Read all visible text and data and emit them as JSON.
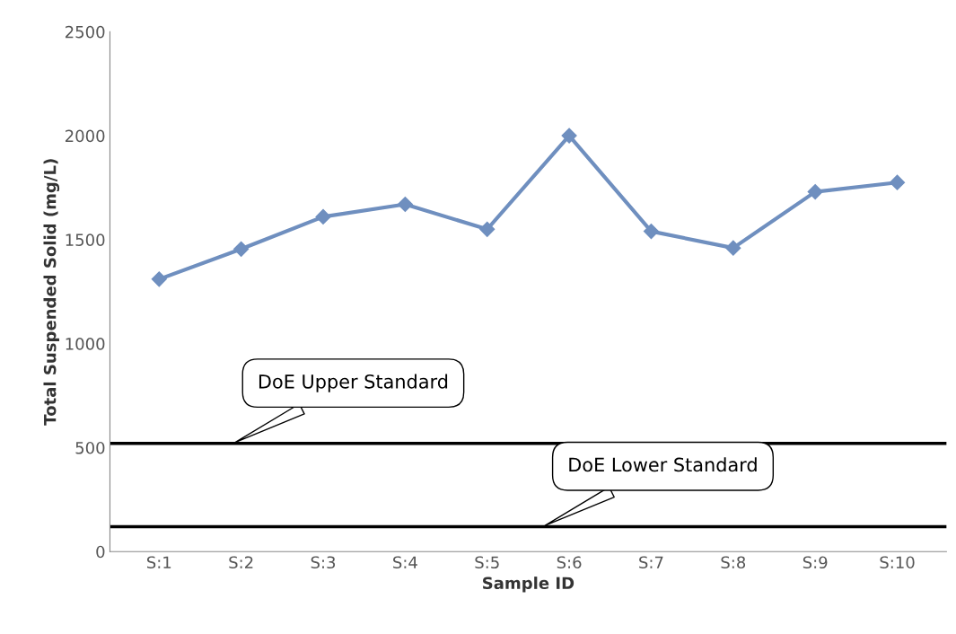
{
  "chart_data": {
    "type": "line",
    "xlabel": "Sample ID",
    "ylabel": "Total Suspended Solid (mg/L)",
    "categories": [
      "S:1",
      "S:2",
      "S:3",
      "S:4",
      "S:5",
      "S:6",
      "S:7",
      "S:8",
      "S:9",
      "S:10"
    ],
    "series": [
      {
        "color": "#6f8fbf",
        "values": [
          1310,
          1455,
          1610,
          1670,
          1550,
          2000,
          1540,
          1460,
          1730,
          1775
        ]
      }
    ],
    "ylim": [
      0,
      2500
    ],
    "yticks": [
      0,
      500,
      1000,
      1500,
      2000,
      2500
    ],
    "ref_lines": [
      {
        "axis": "y",
        "value": 520,
        "label": "DoE Upper Standard",
        "color": "#000000",
        "line_style": "solid"
      },
      {
        "axis": "y",
        "value": 120,
        "label": "DoE Lower Standard",
        "color": "#000000",
        "line_style": "solid"
      }
    ],
    "marker": "diamond",
    "line_style": "solid",
    "grid": false,
    "legend": false
  }
}
